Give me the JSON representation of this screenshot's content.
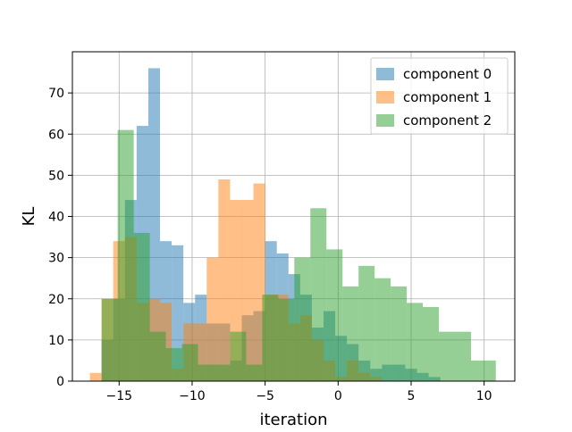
{
  "chart_data": {
    "type": "histogram",
    "title": "",
    "xlabel": "iteration",
    "ylabel": "KL",
    "xlim": [
      -18.2,
      12.1
    ],
    "ylim": [
      0,
      80
    ],
    "xticks": [
      -15,
      -10,
      -5,
      0,
      5,
      10
    ],
    "xtick_labels": [
      "−15",
      "−10",
      "−5",
      "0",
      "5",
      "10"
    ],
    "yticks": [
      0,
      10,
      20,
      30,
      40,
      50,
      60,
      70
    ],
    "grid": true,
    "legend_position": "top-right",
    "series": [
      {
        "name": "component 0",
        "color": "#1f77b4",
        "opacity": 0.5,
        "bin_edges": [
          -16.2,
          -15.4,
          -14.6,
          -13.8,
          -13.0,
          -12.2,
          -11.4,
          -10.6,
          -9.8,
          -9.0,
          -8.2,
          -7.4,
          -6.6,
          -5.8,
          -5.0,
          -4.2,
          -3.4,
          -2.6,
          -1.8,
          -1.0,
          -0.2,
          0.6,
          1.4,
          2.2,
          3.0,
          3.8,
          4.6,
          5.4,
          6.2,
          7.0,
          7.8
        ],
        "counts": [
          10,
          20,
          44,
          62,
          76,
          34,
          33,
          19,
          21,
          14,
          14,
          5,
          16,
          17,
          34,
          31,
          26,
          21,
          13,
          17,
          11,
          9,
          5,
          3,
          4,
          4,
          3,
          2,
          1,
          0
        ]
      },
      {
        "name": "component 1",
        "color": "#ff7f0e",
        "opacity": 0.5,
        "bin_edges": [
          -17.0,
          -16.2,
          -15.4,
          -14.6,
          -13.8,
          -13.0,
          -12.2,
          -11.4,
          -10.6,
          -9.8,
          -9.0,
          -8.2,
          -7.4,
          -6.6,
          -5.8,
          -5.0,
          -4.2,
          -3.4,
          -2.6,
          -1.8,
          -1.0,
          -0.2,
          0.6,
          1.4,
          2.2,
          3.0,
          3.8,
          4.6
        ],
        "counts": [
          2,
          20,
          34,
          35,
          19,
          20,
          19,
          3,
          14,
          14,
          30,
          49,
          44,
          44,
          48,
          21,
          21,
          14,
          16,
          10,
          5,
          1,
          5,
          2,
          1,
          0,
          0
        ]
      },
      {
        "name": "component 2",
        "color": "#2ca02c",
        "opacity": 0.5,
        "bin_edges": [
          -16.2,
          -15.1,
          -14.0,
          -12.9,
          -11.8,
          -10.7,
          -9.6,
          -8.5,
          -7.4,
          -6.3,
          -5.2,
          -4.1,
          -3.0,
          -1.9,
          -0.8,
          0.3,
          1.4,
          2.5,
          3.6,
          4.7,
          5.8,
          6.9,
          8.0,
          9.1,
          10.2,
          10.8
        ],
        "counts": [
          20,
          61,
          36,
          12,
          8,
          9,
          4,
          4,
          12,
          4,
          21,
          20,
          30,
          42,
          32,
          23,
          28,
          25,
          23,
          19,
          18,
          12,
          12,
          5,
          5
        ]
      }
    ]
  }
}
